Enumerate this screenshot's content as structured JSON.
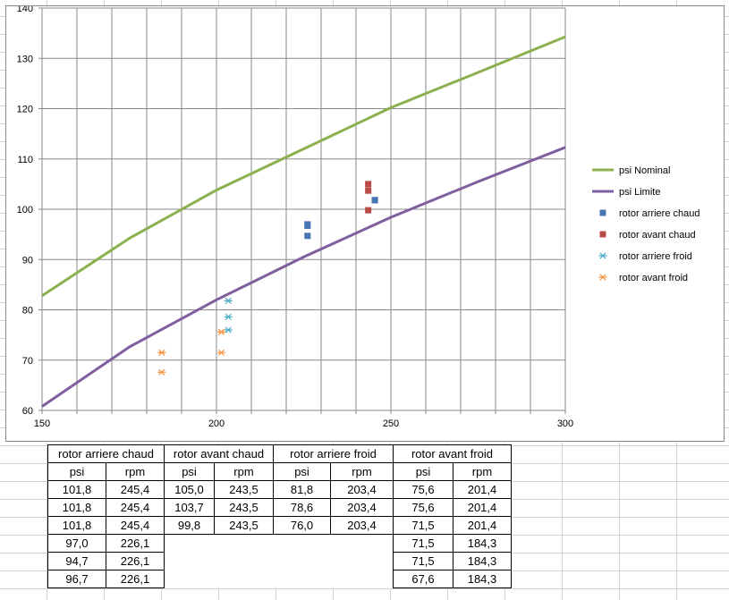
{
  "chart_data": {
    "type": "scatter",
    "title": "",
    "xlabel": "",
    "ylabel": "",
    "xlim": [
      150,
      300
    ],
    "ylim": [
      60,
      140
    ],
    "x_ticks": [
      150,
      200,
      250,
      300
    ],
    "y_ticks": [
      60,
      70,
      80,
      90,
      100,
      110,
      120,
      130,
      140
    ],
    "grid": "on",
    "legend_position": "right",
    "series": [
      {
        "name": "psi Nominal",
        "kind": "line",
        "color": "#8cb04f",
        "points": [
          [
            150,
            82.8
          ],
          [
            175,
            94.2
          ],
          [
            200,
            103.8
          ],
          [
            225,
            112
          ],
          [
            250,
            120.2
          ],
          [
            275,
            127.2
          ],
          [
            300,
            134.3
          ]
        ]
      },
      {
        "name": "psi Limite",
        "kind": "line",
        "color": "#7f5fa0",
        "points": [
          [
            150,
            60.8
          ],
          [
            175,
            72.6
          ],
          [
            200,
            82
          ],
          [
            225,
            90.5
          ],
          [
            250,
            98.4
          ],
          [
            275,
            105.5
          ],
          [
            300,
            112.3
          ]
        ]
      },
      {
        "name": "rotor arriere chaud",
        "kind": "marker",
        "marker": "square",
        "color": "#4a75b4",
        "points": [
          [
            245.4,
            101.8
          ],
          [
            245.4,
            101.8
          ],
          [
            245.4,
            101.8
          ],
          [
            226.1,
            97.0
          ],
          [
            226.1,
            94.7
          ],
          [
            226.1,
            96.7
          ]
        ]
      },
      {
        "name": "rotor avant chaud",
        "kind": "marker",
        "marker": "square",
        "color": "#b84a47",
        "points": [
          [
            243.5,
            105.0
          ],
          [
            243.5,
            103.7
          ],
          [
            243.5,
            99.8
          ]
        ]
      },
      {
        "name": "rotor arriere froid",
        "kind": "marker",
        "marker": "asterisk",
        "color": "#4aacc6",
        "points": [
          [
            203.4,
            81.8
          ],
          [
            203.4,
            78.6
          ],
          [
            203.4,
            76.0
          ]
        ]
      },
      {
        "name": "rotor avant froid",
        "kind": "marker",
        "marker": "asterisk",
        "color": "#f59646",
        "points": [
          [
            201.4,
            75.6
          ],
          [
            201.4,
            75.6
          ],
          [
            201.4,
            71.5
          ],
          [
            184.3,
            71.5
          ],
          [
            184.3,
            71.5
          ],
          [
            184.3,
            67.6
          ]
        ]
      }
    ]
  },
  "table": {
    "groups": [
      "rotor arriere chaud",
      "rotor avant chaud",
      "rotor arriere froid",
      "rotor avant froid"
    ],
    "subheaders": [
      "psi",
      "rpm",
      "psi",
      "rpm",
      "psi",
      "rpm",
      "psi",
      "rpm"
    ],
    "rows": [
      [
        "101,8",
        "245,4",
        "105,0",
        "243,5",
        "81,8",
        "203,4",
        "75,6",
        "201,4"
      ],
      [
        "101,8",
        "245,4",
        "103,7",
        "243,5",
        "78,6",
        "203,4",
        "75,6",
        "201,4"
      ],
      [
        "101,8",
        "245,4",
        "99,8",
        "243,5",
        "76,0",
        "203,4",
        "71,5",
        "201,4"
      ],
      [
        "97,0",
        "226,1",
        "",
        "",
        "",
        "",
        "71,5",
        "184,3"
      ],
      [
        "94,7",
        "226,1",
        "",
        "",
        "",
        "",
        "71,5",
        "184,3"
      ],
      [
        "96,7",
        "226,1",
        "",
        "",
        "",
        "",
        "67,6",
        "184,3"
      ]
    ]
  }
}
